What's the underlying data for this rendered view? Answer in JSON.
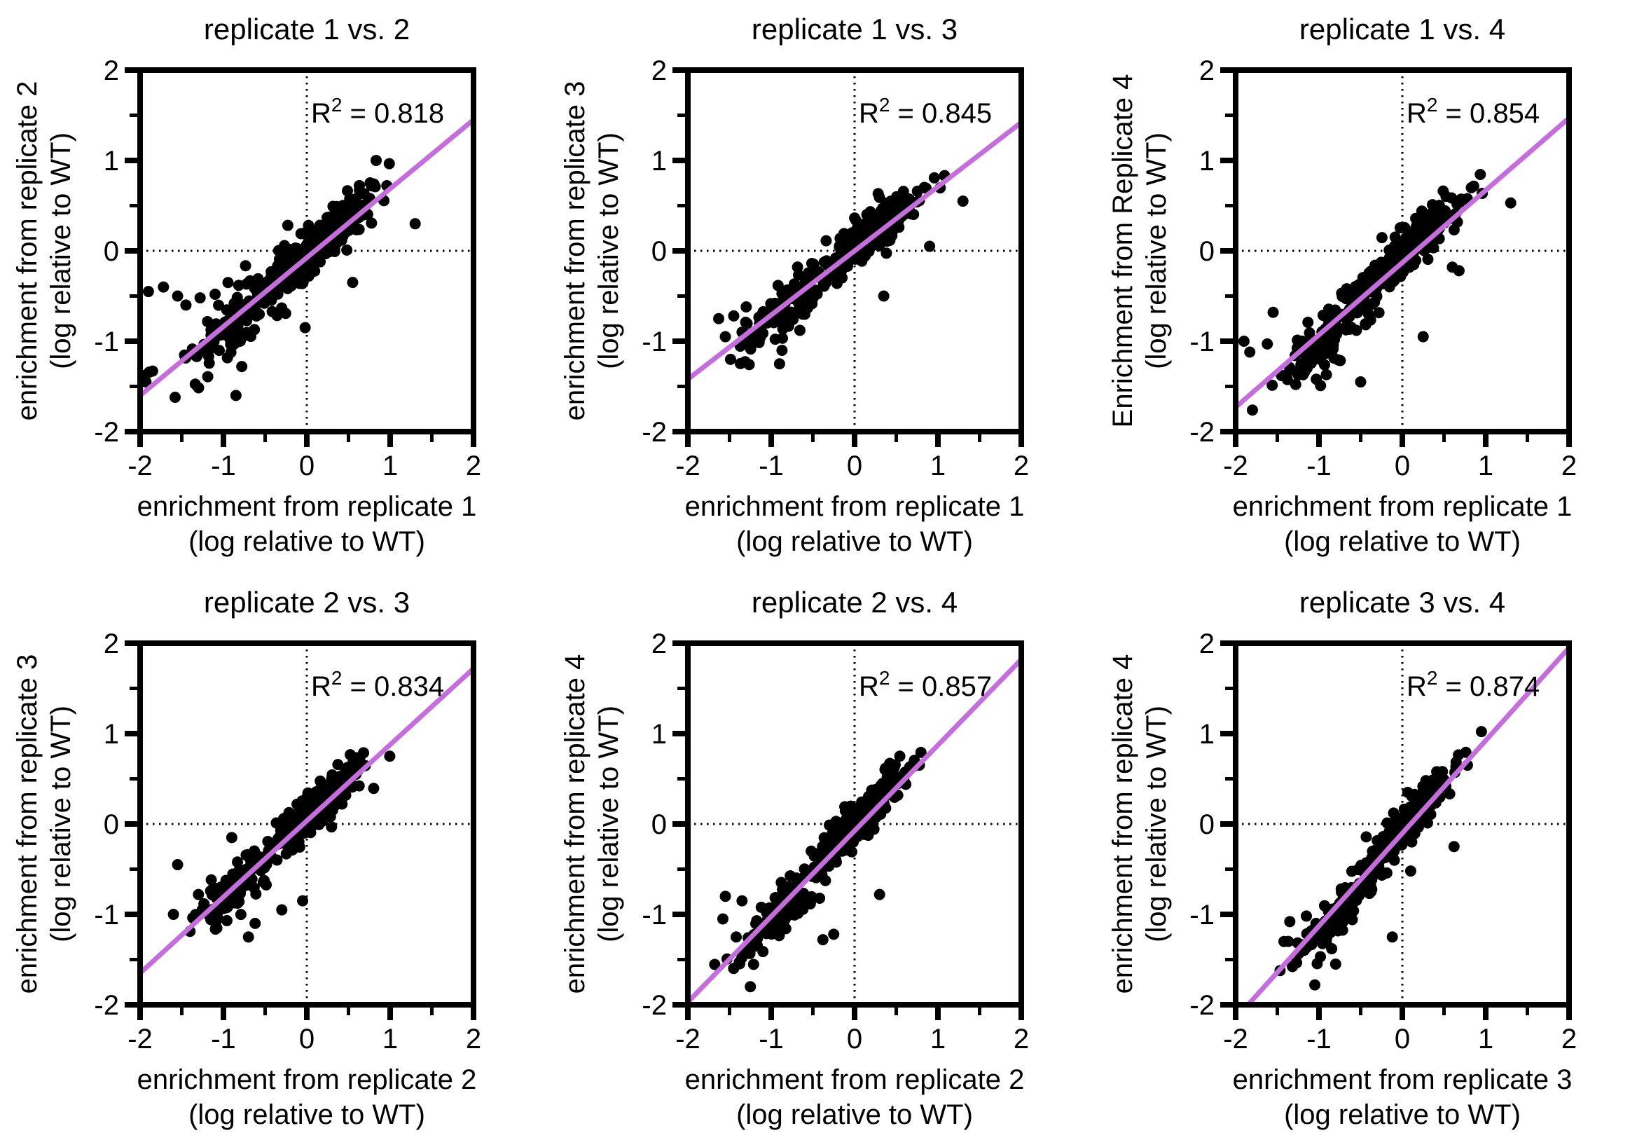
{
  "figure_title": "replicate enrichment correlation scatter matrix",
  "style": {
    "background": "#ffffff",
    "point_color": "#000000",
    "fit_line_color": "#c66ddd",
    "frame_color": "#000000",
    "text_color": "#000000",
    "zero_line_color": "#000000"
  },
  "axes": {
    "xlim": [
      -2,
      2
    ],
    "ylim": [
      -2,
      2
    ],
    "x_ticks": [
      -2,
      -1,
      0,
      1,
      2
    ],
    "y_ticks": [
      -2,
      -1,
      0,
      1,
      2
    ],
    "minor_ticks": [
      -1.5,
      -0.5,
      0.5,
      1.5
    ],
    "x_tick_labels": [
      "-2",
      "-1",
      "0",
      "1",
      "2"
    ],
    "y_tick_labels": [
      "-2",
      "-1",
      "0",
      "1",
      "2"
    ],
    "grid": "off",
    "zero_crosshair": "dotted"
  },
  "r2_format": {
    "base": "R",
    "sup": "2",
    "eq": " = "
  },
  "chart_data": [
    {
      "type": "scatter",
      "title": "replicate 1 vs. 2",
      "r2": "0.818",
      "xlabel_line1": "enrichment from replicate 1",
      "xlabel_line2": "(log relative to WT)",
      "ylabel_line1": "enrichment from replicate 2",
      "ylabel_line2": "(log relative to WT)",
      "fit_line": {
        "x1": -2,
        "y1": -1.6,
        "x2": 2,
        "y2": 1.45
      },
      "scatter": {
        "seed": 11,
        "slope": 0.77,
        "intercept": -0.08,
        "clusters": [
          {
            "n": 265,
            "mux": 0.12,
            "sdx": 0.3,
            "sdy": 0.13,
            "bias": 0.05
          },
          {
            "n": 115,
            "mux": -0.85,
            "sdx": 0.3,
            "sdy": 0.17,
            "bias": -0.05
          }
        ],
        "outliers": [
          [
            -1.9,
            -0.45
          ],
          [
            -1.72,
            -0.4
          ],
          [
            -1.55,
            -0.5
          ],
          [
            -1.45,
            -0.6
          ],
          [
            -1.28,
            -0.52
          ],
          [
            -1.1,
            -0.48
          ],
          [
            -1.85,
            -1.33
          ],
          [
            -1.93,
            -1.45
          ],
          [
            -1.58,
            -1.62
          ],
          [
            -0.85,
            -1.6
          ],
          [
            -0.78,
            -1.28
          ],
          [
            1.3,
            0.3
          ],
          [
            -0.02,
            -0.85
          ],
          [
            0.55,
            -0.35
          ],
          [
            -1.95,
            -1.38
          ]
        ]
      }
    },
    {
      "type": "scatter",
      "title": "replicate 1 vs. 3",
      "r2": "0.845",
      "xlabel_line1": "enrichment from replicate 1",
      "xlabel_line2": "(log relative to WT)",
      "ylabel_line1": "enrichment from replicate 3",
      "ylabel_line2": "(log relative to WT)",
      "fit_line": {
        "x1": -2,
        "y1": -1.42,
        "x2": 2,
        "y2": 1.42
      },
      "scatter": {
        "seed": 22,
        "slope": 0.71,
        "intercept": 0.0,
        "clusters": [
          {
            "n": 275,
            "mux": 0.15,
            "sdx": 0.28,
            "sdy": 0.11,
            "bias": 0.07
          },
          {
            "n": 105,
            "mux": -0.8,
            "sdx": 0.3,
            "sdy": 0.14,
            "bias": -0.08
          }
        ],
        "outliers": [
          [
            1.3,
            0.55
          ],
          [
            -1.63,
            -0.75
          ],
          [
            -1.55,
            -0.95
          ],
          [
            -1.45,
            -0.72
          ],
          [
            -1.3,
            -0.62
          ],
          [
            0.9,
            0.05
          ],
          [
            0.35,
            -0.5
          ],
          [
            -0.9,
            -1.25
          ]
        ]
      }
    },
    {
      "type": "scatter",
      "title": "replicate 1 vs. 4",
      "r2": "0.854",
      "xlabel_line1": "enrichment from replicate 1",
      "xlabel_line2": "(log relative to WT)",
      "ylabel_line1": "Enrichment from Replicate 4",
      "ylabel_line2": "(log relative to WT)",
      "fit_line": {
        "x1": -2,
        "y1": -1.73,
        "x2": 2,
        "y2": 1.47
      },
      "scatter": {
        "seed": 33,
        "slope": 0.8,
        "intercept": -0.13,
        "clusters": [
          {
            "n": 260,
            "mux": 0.1,
            "sdx": 0.3,
            "sdy": 0.12,
            "bias": 0.09
          },
          {
            "n": 120,
            "mux": -0.88,
            "sdx": 0.3,
            "sdy": 0.15,
            "bias": -0.1
          }
        ],
        "outliers": [
          [
            1.3,
            0.53
          ],
          [
            -1.9,
            -1.0
          ],
          [
            -1.83,
            -1.12
          ],
          [
            -1.62,
            -1.03
          ],
          [
            -1.55,
            -0.68
          ],
          [
            0.6,
            -0.18
          ],
          [
            0.68,
            -0.22
          ],
          [
            0.25,
            -0.95
          ],
          [
            -1.45,
            -1.38
          ],
          [
            -0.5,
            -1.45
          ]
        ]
      }
    },
    {
      "type": "scatter",
      "title": "replicate 2 vs. 3",
      "r2": "0.834",
      "xlabel_line1": "enrichment from replicate 2",
      "xlabel_line2": "(log relative to WT)",
      "ylabel_line1": "enrichment from replicate 3",
      "ylabel_line2": "(log relative to WT)",
      "fit_line": {
        "x1": -2,
        "y1": -1.65,
        "x2": 2,
        "y2": 1.72
      },
      "scatter": {
        "seed": 44,
        "slope": 0.84,
        "intercept": 0.03,
        "clusters": [
          {
            "n": 255,
            "mux": 0.08,
            "sdx": 0.28,
            "sdy": 0.11,
            "bias": 0.04
          },
          {
            "n": 100,
            "mux": -0.85,
            "sdx": 0.26,
            "sdy": 0.13,
            "bias": -0.04
          }
        ],
        "outliers": [
          [
            -1.55,
            -0.45
          ],
          [
            -1.6,
            -1.0
          ],
          [
            -0.62,
            -1.1
          ],
          [
            -0.3,
            -0.95
          ],
          [
            -0.05,
            -0.85
          ],
          [
            -0.9,
            -0.15
          ],
          [
            -1.3,
            -0.78
          ],
          [
            -0.7,
            -1.25
          ]
        ]
      }
    },
    {
      "type": "scatter",
      "title": "replicate 2 vs. 4",
      "r2": "0.857",
      "xlabel_line1": "enrichment from replicate 2",
      "xlabel_line2": "(log relative to WT)",
      "ylabel_line1": "enrichment from replicate 4",
      "ylabel_line2": "(log relative to WT)",
      "fit_line": {
        "x1": -2,
        "y1": -1.97,
        "x2": 2,
        "y2": 1.82
      },
      "scatter": {
        "seed": 55,
        "slope": 0.94,
        "intercept": -0.06,
        "clusters": [
          {
            "n": 250,
            "mux": 0.05,
            "sdx": 0.3,
            "sdy": 0.12,
            "bias": 0.05
          },
          {
            "n": 115,
            "mux": -0.9,
            "sdx": 0.26,
            "sdy": 0.13,
            "bias": -0.1
          }
        ],
        "outliers": [
          [
            -1.55,
            -0.8
          ],
          [
            -1.58,
            -1.05
          ],
          [
            -1.25,
            -1.8
          ],
          [
            -0.38,
            -1.28
          ],
          [
            -0.25,
            -1.22
          ],
          [
            0.3,
            -0.78
          ],
          [
            -1.35,
            -0.85
          ],
          [
            -1.42,
            -1.25
          ]
        ]
      }
    },
    {
      "type": "scatter",
      "title": "replicate 3 vs. 4",
      "r2": "0.874",
      "xlabel_line1": "enrichment from replicate 3",
      "xlabel_line2": "(log relative to WT)",
      "ylabel_line1": "enrichment from replicate 4",
      "ylabel_line2": "(log relative to WT)",
      "fit_line": {
        "x1": -1.85,
        "y1": -2.0,
        "x2": 2,
        "y2": 1.95
      },
      "scatter": {
        "seed": 66,
        "slope": 1.03,
        "intercept": -0.1,
        "clusters": [
          {
            "n": 245,
            "mux": 0.1,
            "sdx": 0.27,
            "sdy": 0.1,
            "bias": 0.04
          },
          {
            "n": 125,
            "mux": -0.82,
            "sdx": 0.24,
            "sdy": 0.12,
            "bias": -0.08
          }
        ],
        "outliers": [
          [
            -1.05,
            -1.78
          ],
          [
            -0.12,
            -1.25
          ],
          [
            0.62,
            -0.25
          ],
          [
            -1.35,
            -1.08
          ],
          [
            -1.42,
            -1.3
          ],
          [
            0.1,
            -0.52
          ],
          [
            -0.8,
            -1.55
          ]
        ]
      }
    }
  ]
}
